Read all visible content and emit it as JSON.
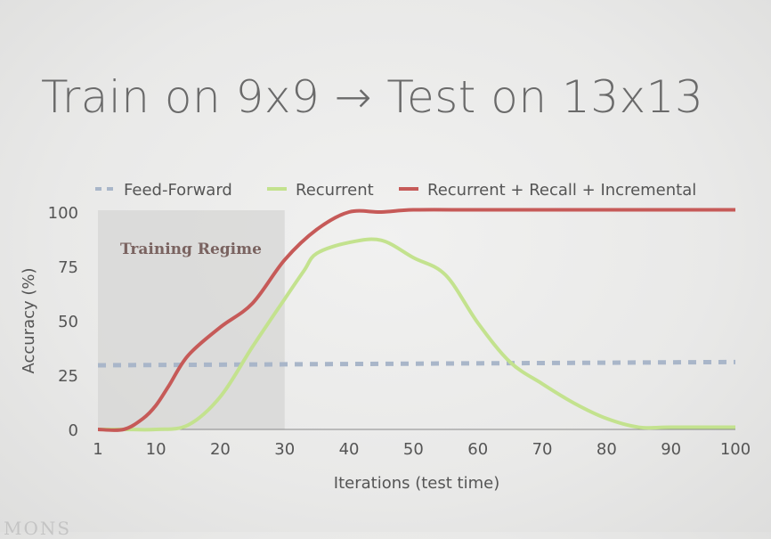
{
  "slide": {
    "title": "Train on 9x9 → Test on 13x13",
    "footer_text": "MONS"
  },
  "chart_data": {
    "type": "line",
    "xlabel": "Iterations (test time)",
    "ylabel": "Accuracy (%)",
    "xlim": [
      1,
      100
    ],
    "ylim": [
      0,
      100
    ],
    "xticks": [
      1,
      10,
      20,
      30,
      40,
      50,
      60,
      70,
      80,
      90,
      100
    ],
    "yticks": [
      0,
      25,
      50,
      75,
      100
    ],
    "grid": false,
    "legend_position": "top",
    "annotation": {
      "text": "Training Regime",
      "x_range": [
        1,
        30
      ]
    },
    "series": [
      {
        "name": "Feed-Forward",
        "style": "dashed",
        "color": "#a9b6c9",
        "x": [
          1,
          100
        ],
        "y": [
          29.5,
          31
        ]
      },
      {
        "name": "Recurrent",
        "style": "solid",
        "color": "#c3e28e",
        "x": [
          1,
          5,
          10,
          15,
          20,
          25,
          30,
          33,
          35,
          40,
          45,
          50,
          55,
          60,
          65,
          70,
          75,
          80,
          85,
          90,
          100
        ],
        "y": [
          0,
          0,
          0,
          2,
          15,
          38,
          60,
          73,
          81,
          86,
          87,
          79,
          71,
          49,
          31,
          21,
          12,
          5,
          1,
          1,
          1
        ]
      },
      {
        "name": "Recurrent + Recall + Incremental",
        "style": "solid",
        "color": "#c65a58",
        "x": [
          1,
          5,
          8,
          10,
          12,
          15,
          20,
          25,
          30,
          35,
          40,
          45,
          50,
          60,
          70,
          80,
          90,
          100
        ],
        "y": [
          0,
          0,
          5,
          11,
          20,
          34,
          47,
          58,
          78,
          92,
          100,
          100,
          101,
          101,
          101,
          101,
          101,
          101
        ]
      }
    ]
  }
}
